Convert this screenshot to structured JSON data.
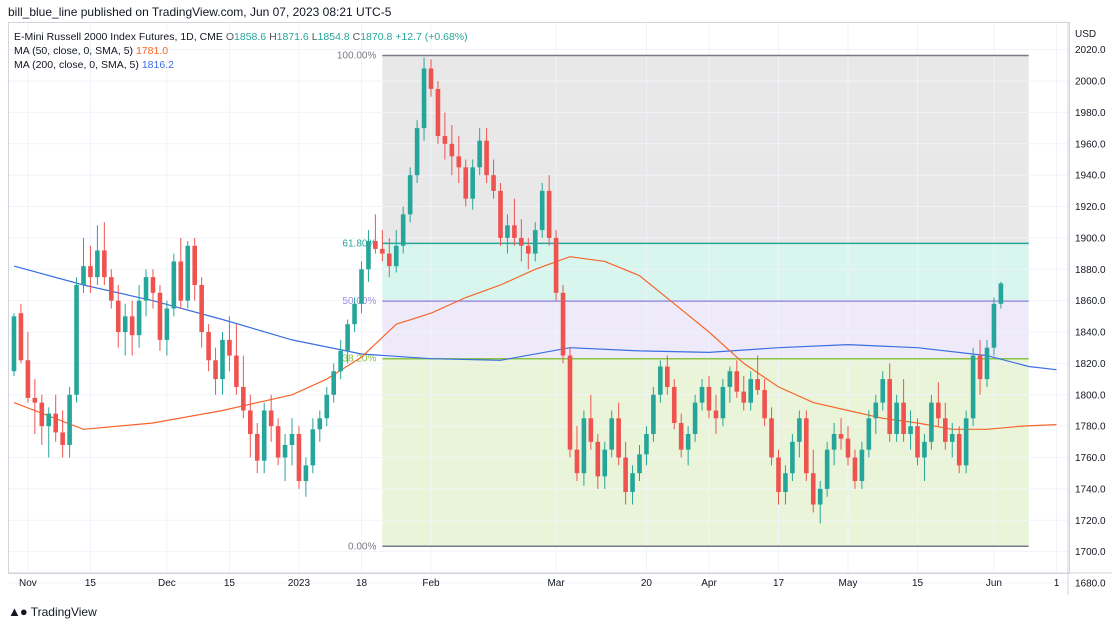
{
  "header": {
    "publisher": "bill_blue_line published on TradingView.com, Jun 07, 2023 08:21 UTC-5"
  },
  "legend": {
    "symbol": "E-Mini Russell 2000 Index Futures, 1D, CME",
    "o_label": "O",
    "o": "1858.6",
    "h_label": "H",
    "h": "1871.6",
    "l_label": "L",
    "l": "1854.8",
    "c_label": "C",
    "c": "1870.8",
    "change": "+12.7 (+0.68%)",
    "ma50_label": "MA (50, close, 0, SMA, 5)",
    "ma50_value": "1781.0",
    "ma200_label": "MA (200, close, 0, SMA, 5)",
    "ma200_value": "1816.2"
  },
  "footer": {
    "brand": "TradingView"
  },
  "colors": {
    "up": "#26a69a",
    "down": "#ef5350",
    "ma50": "#f7662b",
    "ma200": "#3a6fe0",
    "text_green": "#26a69a"
  },
  "chart_data": {
    "type": "candlestick",
    "currency": "USD",
    "ylim": [
      1680,
      2030
    ],
    "y_ticks": [
      "2020.0",
      "2000.0",
      "1980.0",
      "1960.0",
      "1940.0",
      "1920.0",
      "1900.0",
      "1880.0",
      "1860.0",
      "1840.0",
      "1820.0",
      "1800.0",
      "1780.0",
      "1760.0",
      "1740.0",
      "1720.0",
      "1700.0",
      "1680.0"
    ],
    "x_ticks": [
      {
        "label": "Nov",
        "i": 2
      },
      {
        "label": "15",
        "i": 11
      },
      {
        "label": "Dec",
        "i": 22
      },
      {
        "label": "15",
        "i": 31
      },
      {
        "label": "2023",
        "i": 41
      },
      {
        "label": "18",
        "i": 50
      },
      {
        "label": "Feb",
        "i": 60
      },
      {
        "label": "Mar",
        "i": 78
      },
      {
        "label": "20",
        "i": 91
      },
      {
        "label": "Apr",
        "i": 100
      },
      {
        "label": "17",
        "i": 110
      },
      {
        "label": "May",
        "i": 120
      },
      {
        "label": "15",
        "i": 130
      },
      {
        "label": "Jun",
        "i": 141
      },
      {
        "label": "1",
        "i": 150
      }
    ],
    "fib": {
      "levels": [
        {
          "label": "100.00%",
          "value": 2016.3
        },
        {
          "label": "61.80%",
          "value": 1896.5
        },
        {
          "label": "50.00%",
          "value": 1859.7
        },
        {
          "label": "38.20%",
          "value": 1823.0
        },
        {
          "label": "0.00%",
          "value": 1703.4
        }
      ],
      "start_i": 53,
      "end_i": 146
    },
    "candles": [
      [
        1815,
        1852,
        1812,
        1850
      ],
      [
        1852,
        1858,
        1820,
        1822
      ],
      [
        1822,
        1840,
        1795,
        1798
      ],
      [
        1798,
        1810,
        1775,
        1795
      ],
      [
        1795,
        1800,
        1768,
        1780
      ],
      [
        1780,
        1792,
        1760,
        1788
      ],
      [
        1788,
        1800,
        1770,
        1776
      ],
      [
        1776,
        1790,
        1760,
        1768
      ],
      [
        1768,
        1805,
        1760,
        1800
      ],
      [
        1800,
        1875,
        1795,
        1870
      ],
      [
        1870,
        1900,
        1865,
        1882
      ],
      [
        1882,
        1895,
        1865,
        1875
      ],
      [
        1875,
        1908,
        1870,
        1892
      ],
      [
        1892,
        1910,
        1870,
        1875
      ],
      [
        1875,
        1880,
        1855,
        1860
      ],
      [
        1860,
        1870,
        1830,
        1840
      ],
      [
        1840,
        1858,
        1825,
        1850
      ],
      [
        1850,
        1860,
        1825,
        1838
      ],
      [
        1838,
        1870,
        1830,
        1860
      ],
      [
        1860,
        1880,
        1850,
        1875
      ],
      [
        1875,
        1880,
        1855,
        1865
      ],
      [
        1865,
        1870,
        1828,
        1835
      ],
      [
        1835,
        1860,
        1825,
        1855
      ],
      [
        1855,
        1890,
        1850,
        1885
      ],
      [
        1885,
        1900,
        1855,
        1860
      ],
      [
        1860,
        1898,
        1855,
        1895
      ],
      [
        1895,
        1900,
        1860,
        1870
      ],
      [
        1870,
        1875,
        1830,
        1840
      ],
      [
        1840,
        1845,
        1815,
        1822
      ],
      [
        1822,
        1830,
        1800,
        1810
      ],
      [
        1810,
        1840,
        1800,
        1835
      ],
      [
        1835,
        1850,
        1815,
        1825
      ],
      [
        1825,
        1845,
        1800,
        1805
      ],
      [
        1805,
        1825,
        1785,
        1790
      ],
      [
        1790,
        1800,
        1760,
        1775
      ],
      [
        1775,
        1782,
        1750,
        1758
      ],
      [
        1758,
        1795,
        1750,
        1790
      ],
      [
        1790,
        1800,
        1770,
        1780
      ],
      [
        1780,
        1785,
        1755,
        1760
      ],
      [
        1760,
        1775,
        1745,
        1768
      ],
      [
        1768,
        1785,
        1755,
        1775
      ],
      [
        1775,
        1780,
        1740,
        1745
      ],
      [
        1745,
        1760,
        1735,
        1755
      ],
      [
        1755,
        1785,
        1750,
        1778
      ],
      [
        1778,
        1790,
        1770,
        1785
      ],
      [
        1785,
        1805,
        1780,
        1800
      ],
      [
        1800,
        1820,
        1795,
        1815
      ],
      [
        1815,
        1835,
        1810,
        1828
      ],
      [
        1828,
        1848,
        1820,
        1845
      ],
      [
        1845,
        1862,
        1840,
        1858
      ],
      [
        1858,
        1885,
        1852,
        1880
      ],
      [
        1880,
        1905,
        1872,
        1898
      ],
      [
        1898,
        1915,
        1890,
        1893
      ],
      [
        1893,
        1905,
        1885,
        1890
      ],
      [
        1890,
        1900,
        1875,
        1882
      ],
      [
        1882,
        1905,
        1878,
        1895
      ],
      [
        1895,
        1920,
        1890,
        1915
      ],
      [
        1915,
        1945,
        1910,
        1940
      ],
      [
        1940,
        1975,
        1935,
        1970
      ],
      [
        1970,
        2015,
        1962,
        2008
      ],
      [
        2008,
        2014,
        1990,
        1995
      ],
      [
        1995,
        2000,
        1960,
        1965
      ],
      [
        1965,
        1980,
        1950,
        1960
      ],
      [
        1960,
        1972,
        1940,
        1952
      ],
      [
        1952,
        1965,
        1935,
        1945
      ],
      [
        1945,
        1950,
        1920,
        1925
      ],
      [
        1925,
        1950,
        1918,
        1945
      ],
      [
        1945,
        1970,
        1940,
        1962
      ],
      [
        1962,
        1970,
        1935,
        1940
      ],
      [
        1940,
        1950,
        1925,
        1930
      ],
      [
        1930,
        1935,
        1895,
        1900
      ],
      [
        1900,
        1915,
        1890,
        1908
      ],
      [
        1908,
        1925,
        1895,
        1900
      ],
      [
        1900,
        1912,
        1885,
        1895
      ],
      [
        1895,
        1900,
        1880,
        1890
      ],
      [
        1890,
        1910,
        1885,
        1905
      ],
      [
        1905,
        1935,
        1900,
        1930
      ],
      [
        1930,
        1940,
        1895,
        1900
      ],
      [
        1900,
        1905,
        1860,
        1865
      ],
      [
        1865,
        1870,
        1820,
        1825
      ],
      [
        1825,
        1830,
        1760,
        1765
      ],
      [
        1765,
        1780,
        1745,
        1750
      ],
      [
        1750,
        1790,
        1742,
        1785
      ],
      [
        1785,
        1800,
        1765,
        1770
      ],
      [
        1770,
        1775,
        1740,
        1748
      ],
      [
        1748,
        1770,
        1740,
        1765
      ],
      [
        1765,
        1790,
        1760,
        1785
      ],
      [
        1785,
        1795,
        1755,
        1760
      ],
      [
        1760,
        1770,
        1730,
        1738
      ],
      [
        1738,
        1755,
        1730,
        1750
      ],
      [
        1750,
        1768,
        1745,
        1762
      ],
      [
        1762,
        1780,
        1755,
        1775
      ],
      [
        1775,
        1805,
        1770,
        1800
      ],
      [
        1800,
        1822,
        1795,
        1818
      ],
      [
        1818,
        1825,
        1800,
        1805
      ],
      [
        1805,
        1810,
        1778,
        1782
      ],
      [
        1782,
        1788,
        1760,
        1765
      ],
      [
        1765,
        1780,
        1755,
        1775
      ],
      [
        1775,
        1800,
        1770,
        1795
      ],
      [
        1795,
        1810,
        1790,
        1805
      ],
      [
        1805,
        1812,
        1785,
        1790
      ],
      [
        1790,
        1800,
        1775,
        1785
      ],
      [
        1785,
        1810,
        1780,
        1805
      ],
      [
        1805,
        1818,
        1795,
        1815
      ],
      [
        1815,
        1822,
        1798,
        1802
      ],
      [
        1802,
        1812,
        1790,
        1795
      ],
      [
        1795,
        1815,
        1790,
        1810
      ],
      [
        1810,
        1825,
        1800,
        1803
      ],
      [
        1803,
        1810,
        1780,
        1785
      ],
      [
        1785,
        1792,
        1755,
        1760
      ],
      [
        1760,
        1765,
        1730,
        1738
      ],
      [
        1738,
        1755,
        1730,
        1750
      ],
      [
        1750,
        1775,
        1745,
        1770
      ],
      [
        1770,
        1790,
        1760,
        1785
      ],
      [
        1785,
        1790,
        1745,
        1750
      ],
      [
        1750,
        1765,
        1725,
        1730
      ],
      [
        1730,
        1745,
        1718,
        1740
      ],
      [
        1740,
        1770,
        1735,
        1765
      ],
      [
        1765,
        1782,
        1755,
        1775
      ],
      [
        1775,
        1785,
        1765,
        1772
      ],
      [
        1772,
        1780,
        1755,
        1760
      ],
      [
        1760,
        1765,
        1740,
        1745
      ],
      [
        1745,
        1770,
        1740,
        1765
      ],
      [
        1765,
        1790,
        1760,
        1785
      ],
      [
        1785,
        1800,
        1775,
        1795
      ],
      [
        1795,
        1815,
        1790,
        1810
      ],
      [
        1810,
        1820,
        1770,
        1775
      ],
      [
        1775,
        1800,
        1770,
        1795
      ],
      [
        1795,
        1810,
        1770,
        1775
      ],
      [
        1775,
        1790,
        1765,
        1780
      ],
      [
        1780,
        1785,
        1755,
        1760
      ],
      [
        1760,
        1775,
        1745,
        1770
      ],
      [
        1770,
        1800,
        1765,
        1795
      ],
      [
        1795,
        1808,
        1780,
        1785
      ],
      [
        1785,
        1795,
        1765,
        1770
      ],
      [
        1770,
        1782,
        1760,
        1775
      ],
      [
        1775,
        1780,
        1750,
        1755
      ],
      [
        1755,
        1790,
        1750,
        1785
      ],
      [
        1785,
        1830,
        1780,
        1825
      ],
      [
        1825,
        1835,
        1800,
        1810
      ],
      [
        1810,
        1835,
        1805,
        1830
      ],
      [
        1830,
        1862,
        1825,
        1858
      ],
      [
        1858,
        1872,
        1855,
        1871
      ]
    ],
    "ma50": [
      [
        0,
        1795
      ],
      [
        10,
        1778
      ],
      [
        20,
        1782
      ],
      [
        30,
        1790
      ],
      [
        40,
        1800
      ],
      [
        45,
        1810
      ],
      [
        50,
        1824
      ],
      [
        55,
        1845
      ],
      [
        60,
        1852
      ],
      [
        65,
        1862
      ],
      [
        70,
        1870
      ],
      [
        75,
        1880
      ],
      [
        80,
        1888
      ],
      [
        85,
        1885
      ],
      [
        90,
        1876
      ],
      [
        95,
        1858
      ],
      [
        100,
        1840
      ],
      [
        105,
        1820
      ],
      [
        110,
        1805
      ],
      [
        115,
        1795
      ],
      [
        120,
        1790
      ],
      [
        125,
        1785
      ],
      [
        130,
        1782
      ],
      [
        135,
        1778
      ],
      [
        140,
        1778
      ],
      [
        145,
        1780
      ],
      [
        150,
        1781
      ]
    ],
    "ma200": [
      [
        0,
        1882
      ],
      [
        10,
        1870
      ],
      [
        20,
        1860
      ],
      [
        30,
        1848
      ],
      [
        40,
        1835
      ],
      [
        50,
        1826
      ],
      [
        60,
        1823
      ],
      [
        70,
        1822
      ],
      [
        80,
        1830
      ],
      [
        90,
        1828
      ],
      [
        100,
        1827
      ],
      [
        110,
        1830
      ],
      [
        120,
        1832
      ],
      [
        130,
        1830
      ],
      [
        140,
        1825
      ],
      [
        146,
        1818
      ],
      [
        150,
        1816
      ]
    ]
  }
}
